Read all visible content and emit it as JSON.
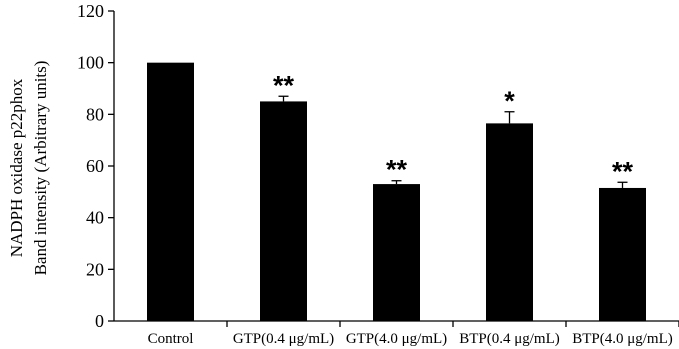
{
  "chart_data": {
    "type": "bar",
    "title": "",
    "ylabel_lines": [
      "NADPH oxidase p22phox",
      "Band intensity (Arbitrary units)"
    ],
    "xlabel": "",
    "ylim": [
      0,
      120
    ],
    "yticks": [
      0,
      20,
      40,
      60,
      80,
      100,
      120
    ],
    "categories": [
      "Control",
      "GTP(0.4 μg/mL)",
      "GTP(4.0 μg/mL)",
      "BTP(0.4 μg/mL)",
      "BTP(4.0 μg/mL)"
    ],
    "values": [
      100,
      85,
      53,
      76.5,
      51.5
    ],
    "errors": [
      0,
      2,
      1.3,
      4.5,
      2.2
    ],
    "significance": [
      "",
      "**",
      "**",
      "*",
      "**"
    ],
    "bar_color": "#000000",
    "grid": false
  }
}
